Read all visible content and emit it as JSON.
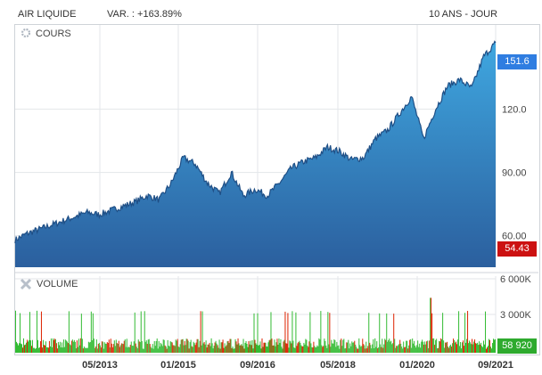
{
  "header": {
    "name": "AIR LIQUIDE",
    "variation": "VAR. : +163.89%",
    "period": "10 ANS - JOUR"
  },
  "price_panel": {
    "label": "COURS"
  },
  "volume_panel": {
    "label": "VOLUME"
  },
  "tags": {
    "last_price": "151.6",
    "min_price": "54.43",
    "last_volume": "58 920"
  },
  "colors": {
    "area_top": "#3fa7e0",
    "area_bottom": "#2b5f9e",
    "line": "#1f4f86",
    "last_tag": "#2f7de1",
    "min_tag": "#cc1111",
    "vol_tag": "#2eaa2e",
    "vol_down": "#dd2200",
    "vol_up": "#33bb33"
  },
  "chart_data": [
    {
      "type": "area",
      "title": "COURS",
      "x_ticks": [
        "05/2013",
        "01/2015",
        "09/2016",
        "05/2018",
        "01/2020",
        "09/2021"
      ],
      "y_ticks": [
        "60.00",
        "90.00",
        "120.0"
      ],
      "ylim": [
        45,
        160
      ],
      "x": [
        "2011-10",
        "2012-01",
        "2012-04",
        "2012-07",
        "2012-10",
        "2013-01",
        "2013-04",
        "2013-07",
        "2013-10",
        "2014-01",
        "2014-04",
        "2014-07",
        "2014-10",
        "2015-01",
        "2015-04",
        "2015-07",
        "2015-10",
        "2016-01",
        "2016-04",
        "2016-07",
        "2016-10",
        "2017-01",
        "2017-04",
        "2017-07",
        "2017-10",
        "2018-01",
        "2018-04",
        "2018-07",
        "2018-10",
        "2019-01",
        "2019-04",
        "2019-07",
        "2019-10",
        "2020-01",
        "2020-03",
        "2020-06",
        "2020-09",
        "2020-12",
        "2021-03",
        "2021-06",
        "2021-09"
      ],
      "values": [
        58,
        61,
        63,
        65,
        67,
        69,
        71,
        70,
        72,
        74,
        76,
        79,
        77,
        85,
        97,
        94,
        85,
        80,
        90,
        79,
        82,
        79,
        85,
        92,
        95,
        97,
        102,
        100,
        96,
        97,
        106,
        110,
        118,
        126,
        106,
        120,
        131,
        134,
        130,
        145,
        151.6
      ],
      "grid": true
    },
    {
      "type": "bar",
      "title": "VOLUME",
      "y_ticks": [
        "3 000K",
        "6 000K"
      ],
      "ylim": [
        0,
        6000
      ],
      "last_value": "58 920"
    }
  ]
}
